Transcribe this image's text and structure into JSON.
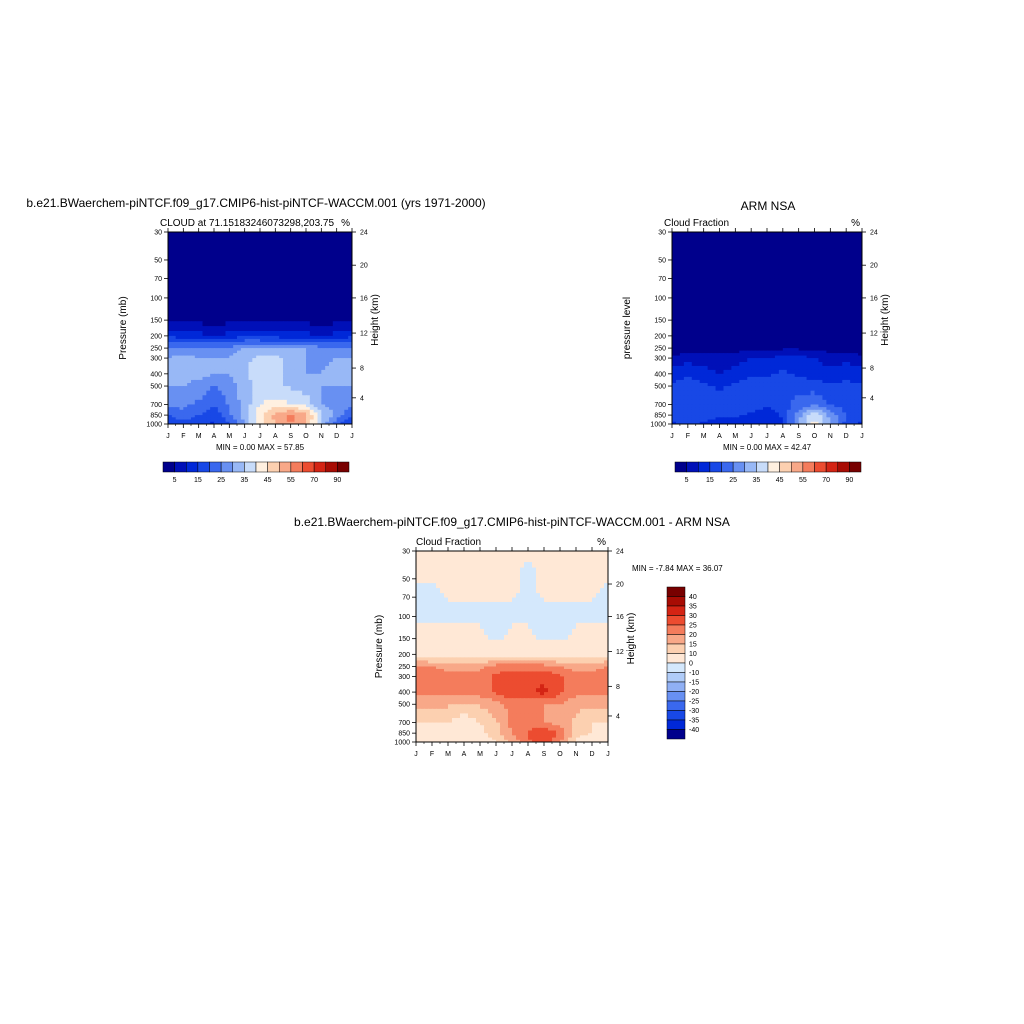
{
  "chart_data": [
    {
      "type": "heatmap",
      "panel": "model",
      "title": "b.e21.BWaerchem-piNTCF.f09_g17.CMIP6-hist-piNTCF-WACCM.001 (yrs 1971-2000)",
      "subtitle_left": "CLOUD at 71.15183246073298,203.75",
      "subtitle_right": "%",
      "ylabel": "Pressure (mb)",
      "ylabel_right": "Height (km)",
      "x": [
        "J",
        "F",
        "M",
        "A",
        "M",
        "J",
        "J",
        "A",
        "S",
        "O",
        "N",
        "D",
        "J"
      ],
      "y_ticks": [
        "30",
        "50",
        "70",
        "100",
        "150",
        "200",
        "250",
        "300",
        "400",
        "500",
        "700",
        "850",
        "1000"
      ],
      "y_right_ticks": [
        "24",
        "20",
        "16",
        "12",
        "8",
        "4"
      ],
      "ylim": [
        30,
        1000
      ],
      "y_scale": "log-pressure",
      "stats": "MIN =   0.00 MAX =  57.85",
      "colorbar_ticks": [
        "5",
        "15",
        "25",
        "35",
        "45",
        "55",
        "70",
        "90"
      ],
      "colorbar_orientation": "horizontal",
      "palette": [
        "#00008c",
        "#0010b8",
        "#0028d8",
        "#1848e6",
        "#3a68ee",
        "#6890f2",
        "#98b8f6",
        "#c8dcfa",
        "#fff0e0",
        "#fcd0b0",
        "#f8a888",
        "#f47c5c",
        "#ec4c30",
        "#d42414",
        "#a80c04",
        "#780000"
      ],
      "values": [
        [
          0,
          0,
          0,
          0,
          0,
          0,
          0,
          0,
          0,
          0,
          0,
          0,
          0
        ],
        [
          0,
          0,
          0,
          0,
          0,
          0,
          0,
          0,
          0,
          0,
          0,
          0,
          0
        ],
        [
          0,
          0,
          0,
          0,
          0,
          0,
          0,
          0,
          0,
          0,
          0,
          0,
          0
        ],
        [
          0,
          0,
          0,
          0,
          0,
          0,
          0,
          0,
          0,
          0,
          0,
          0,
          0
        ],
        [
          1,
          1,
          1,
          1,
          1,
          1,
          1,
          1,
          1,
          1,
          1,
          1,
          1
        ],
        [
          14,
          13,
          12,
          10,
          12,
          14,
          14,
          13,
          12,
          12,
          10,
          12,
          14
        ],
        [
          26,
          26,
          26,
          26,
          26,
          30,
          30,
          30,
          30,
          30,
          26,
          26,
          26
        ],
        [
          30,
          32,
          30,
          30,
          30,
          34,
          36,
          36,
          34,
          30,
          28,
          30,
          30
        ],
        [
          30,
          32,
          32,
          30,
          30,
          34,
          38,
          36,
          34,
          30,
          30,
          32,
          30
        ],
        [
          30,
          30,
          28,
          24,
          28,
          32,
          38,
          36,
          34,
          32,
          30,
          30,
          30
        ],
        [
          26,
          26,
          24,
          20,
          26,
          32,
          40,
          42,
          40,
          38,
          30,
          28,
          26
        ],
        [
          20,
          24,
          20,
          16,
          24,
          32,
          44,
          52,
          57,
          52,
          36,
          28,
          20
        ],
        [
          14,
          18,
          16,
          14,
          20,
          30,
          44,
          50,
          55,
          50,
          34,
          22,
          14
        ]
      ]
    },
    {
      "type": "heatmap",
      "panel": "observed",
      "title": "ARM NSA",
      "subtitle_left": "Cloud Fraction",
      "subtitle_right": "%",
      "ylabel": "pressure level",
      "ylabel_right": "Height (km)",
      "x": [
        "J",
        "F",
        "M",
        "A",
        "M",
        "J",
        "J",
        "A",
        "S",
        "O",
        "N",
        "D",
        "J"
      ],
      "y_ticks": [
        "30",
        "50",
        "70",
        "100",
        "150",
        "200",
        "250",
        "300",
        "400",
        "500",
        "700",
        "850",
        "1000"
      ],
      "y_right_ticks": [
        "24",
        "20",
        "16",
        "12",
        "8",
        "4"
      ],
      "ylim": [
        30,
        1000
      ],
      "y_scale": "log-pressure",
      "stats": "MIN =   0.00 MAX =  42.47",
      "colorbar_ticks": [
        "5",
        "15",
        "25",
        "35",
        "45",
        "55",
        "70",
        "90"
      ],
      "colorbar_orientation": "horizontal",
      "palette": [
        "#00008c",
        "#0010b8",
        "#0028d8",
        "#1848e6",
        "#3a68ee",
        "#6890f2",
        "#98b8f6",
        "#c8dcfa",
        "#fff0e0",
        "#fcd0b0",
        "#f8a888",
        "#f47c5c",
        "#ec4c30",
        "#d42414",
        "#a80c04",
        "#780000"
      ],
      "values": [
        [
          0,
          0,
          0,
          0,
          0,
          0,
          0,
          0,
          0,
          0,
          0,
          0,
          0
        ],
        [
          0,
          0,
          0,
          0,
          0,
          0,
          0,
          0,
          0,
          0,
          0,
          0,
          0
        ],
        [
          0,
          0,
          0,
          0,
          0,
          0,
          0,
          0,
          0,
          0,
          0,
          0,
          0
        ],
        [
          0,
          0,
          0,
          0,
          0,
          0,
          0,
          0,
          0,
          0,
          0,
          0,
          0
        ],
        [
          0,
          0,
          0,
          0,
          0,
          0,
          0,
          0,
          0,
          0,
          0,
          0,
          0
        ],
        [
          1,
          1,
          1,
          1,
          1,
          1,
          1,
          1,
          1,
          1,
          1,
          1,
          1
        ],
        [
          2,
          2,
          3,
          3,
          3,
          3,
          4,
          4,
          4,
          3,
          3,
          3,
          2
        ],
        [
          6,
          8,
          8,
          6,
          8,
          10,
          10,
          12,
          12,
          10,
          8,
          8,
          6
        ],
        [
          12,
          14,
          12,
          10,
          12,
          14,
          14,
          16,
          14,
          12,
          12,
          14,
          12
        ],
        [
          16,
          18,
          16,
          14,
          16,
          18,
          18,
          20,
          18,
          18,
          16,
          16,
          16
        ],
        [
          18,
          20,
          18,
          16,
          18,
          18,
          16,
          18,
          22,
          24,
          20,
          18,
          18
        ],
        [
          18,
          20,
          18,
          16,
          16,
          14,
          12,
          16,
          28,
          40,
          28,
          20,
          18
        ],
        [
          14,
          16,
          14,
          12,
          12,
          12,
          10,
          14,
          30,
          42,
          30,
          18,
          14
        ]
      ]
    },
    {
      "type": "heatmap",
      "panel": "difference",
      "title": "b.e21.BWaerchem-piNTCF.f09_g17.CMIP6-hist-piNTCF-WACCM.001 - ARM NSA",
      "subtitle_left": "Cloud Fraction",
      "subtitle_right": "%",
      "ylabel": "Pressure (mb)",
      "ylabel_right": "Height (km)",
      "x": [
        "J",
        "F",
        "M",
        "A",
        "M",
        "J",
        "J",
        "A",
        "S",
        "O",
        "N",
        "D",
        "J"
      ],
      "y_ticks": [
        "30",
        "50",
        "70",
        "100",
        "150",
        "200",
        "250",
        "300",
        "400",
        "500",
        "700",
        "850",
        "1000"
      ],
      "y_right_ticks": [
        "24",
        "20",
        "16",
        "12",
        "8",
        "4"
      ],
      "ylim": [
        30,
        1000
      ],
      "y_scale": "log-pressure",
      "stats": "MIN =  -7.84 MAX =  36.07",
      "colorbar_ticks": [
        "40",
        "35",
        "30",
        "25",
        "20",
        "15",
        "10",
        "0",
        "-10",
        "-15",
        "-20",
        "-25",
        "-30",
        "-35",
        "-40"
      ],
      "colorbar_orientation": "vertical",
      "palette_top_to_bottom": [
        "#780000",
        "#a80c04",
        "#d42414",
        "#ec4c30",
        "#f47c5c",
        "#f8a888",
        "#fcd0b0",
        "#ffe8d6",
        "#d4e8fc",
        "#b0ccf8",
        "#90b0f4",
        "#6890f2",
        "#3a68ee",
        "#1848e6",
        "#0028d8",
        "#00008c"
      ],
      "values": [
        [
          2,
          2,
          2,
          2,
          2,
          2,
          2,
          2,
          2,
          2,
          2,
          2,
          2
        ],
        [
          2,
          2,
          2,
          2,
          2,
          2,
          2,
          -3,
          2,
          2,
          2,
          2,
          2
        ],
        [
          -3,
          -3,
          2,
          2,
          2,
          2,
          2,
          -3,
          2,
          2,
          2,
          2,
          -3
        ],
        [
          -3,
          -3,
          -3,
          -3,
          -3,
          -3,
          -3,
          -3,
          -3,
          -3,
          -3,
          -3,
          -3
        ],
        [
          2,
          2,
          2,
          2,
          2,
          -3,
          2,
          2,
          -3,
          -3,
          2,
          2,
          2
        ],
        [
          8,
          6,
          6,
          6,
          6,
          6,
          6,
          6,
          6,
          6,
          6,
          6,
          8
        ],
        [
          20,
          20,
          18,
          18,
          18,
          22,
          22,
          22,
          22,
          20,
          18,
          18,
          20
        ],
        [
          24,
          24,
          22,
          22,
          22,
          26,
          30,
          28,
          28,
          26,
          22,
          22,
          24
        ],
        [
          22,
          22,
          22,
          22,
          22,
          26,
          30,
          28,
          32,
          26,
          22,
          22,
          22
        ],
        [
          16,
          16,
          16,
          14,
          16,
          18,
          22,
          20,
          20,
          20,
          16,
          16,
          16
        ],
        [
          10,
          10,
          10,
          6,
          10,
          14,
          22,
          22,
          20,
          18,
          14,
          10,
          10
        ],
        [
          6,
          8,
          6,
          4,
          8,
          14,
          20,
          26,
          30,
          24,
          12,
          10,
          6
        ],
        [
          2,
          4,
          4,
          2,
          6,
          10,
          16,
          24,
          28,
          20,
          8,
          6,
          2
        ]
      ]
    }
  ]
}
